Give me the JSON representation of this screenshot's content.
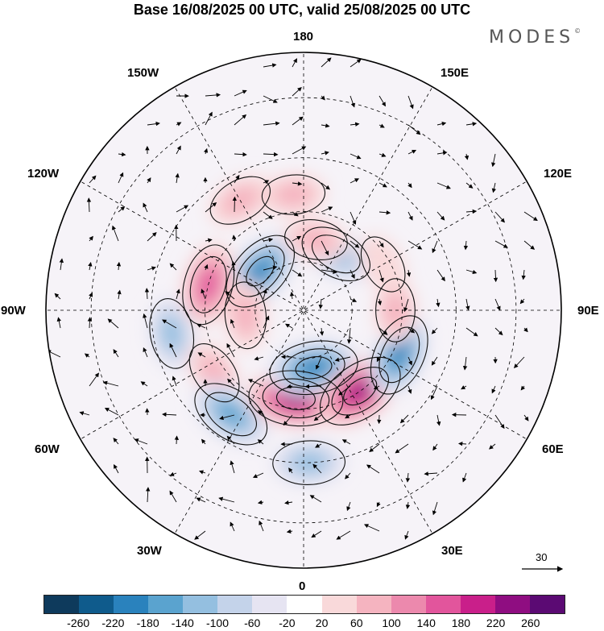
{
  "title": "Base 16/08/2025 00 UTC, valid 25/08/2025 00 UTC",
  "brand": "MODES",
  "brand_mark": "©",
  "longitude_labels": {
    "top": "180",
    "bottom": "0",
    "left": "90W",
    "right": "90E",
    "upper_left": "150W",
    "upper_right": "150E",
    "mid_upper_left": "120W",
    "mid_upper_right": "120E",
    "mid_lower_left": "60W",
    "mid_lower_right": "60E",
    "lower_left": "30W",
    "lower_right": "30E"
  },
  "reference_vector": {
    "value": "30"
  },
  "colorbar": {
    "colors": [
      "#0e3a5c",
      "#0f5b8c",
      "#2a82bd",
      "#5aa3cf",
      "#94bfe0",
      "#c4d3ea",
      "#e6e4f2",
      "#ffffff",
      "#f9d9da",
      "#f5b4c0",
      "#ec89ad",
      "#e2559c",
      "#c91f8a",
      "#8f0d81",
      "#5b0a73"
    ],
    "tick_labels": [
      "-260",
      "-220",
      "-180",
      "-140",
      "-100",
      "-60",
      "-20",
      "20",
      "60",
      "100",
      "140",
      "180",
      "220",
      "260"
    ]
  },
  "map_data": {
    "projection": "north-polar-stereographic",
    "field": "geopotential height anomaly with wind vectors",
    "anomalies": [
      {
        "lon": -150,
        "lat": 52,
        "value": 70
      },
      {
        "lon": -132,
        "lat": 72,
        "value": -180
      },
      {
        "lon": -105,
        "lat": 60,
        "value": 160
      },
      {
        "lon": -85,
        "lat": 72,
        "value": 80
      },
      {
        "lon": -80,
        "lat": 50,
        "value": -100
      },
      {
        "lon": -55,
        "lat": 57,
        "value": 70
      },
      {
        "lon": -35,
        "lat": 52,
        "value": -160
      },
      {
        "lon": -5,
        "lat": 63,
        "value": 230
      },
      {
        "lon": 10,
        "lat": 72,
        "value": -200
      },
      {
        "lon": 2,
        "lat": 45,
        "value": -110
      },
      {
        "lon": 35,
        "lat": 60,
        "value": 210
      },
      {
        "lon": 65,
        "lat": 58,
        "value": -170
      },
      {
        "lon": 90,
        "lat": 62,
        "value": 60
      },
      {
        "lon": 150,
        "lat": 70,
        "value": -120
      },
      {
        "lon": 170,
        "lat": 68,
        "value": 60
      },
      {
        "lon": 120,
        "lat": 62,
        "value": 40
      },
      {
        "lon": -175,
        "lat": 55,
        "value": 60
      }
    ]
  }
}
